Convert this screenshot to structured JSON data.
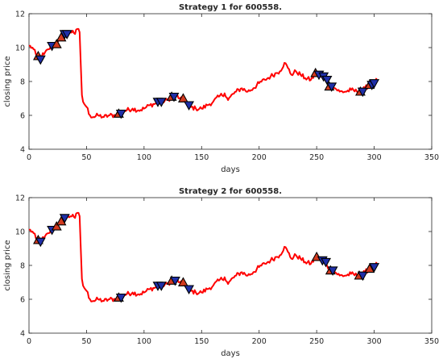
{
  "chart_data": [
    {
      "type": "line",
      "title": "Strategy 1 for 600558.",
      "xlabel": "days",
      "ylabel": "closing price",
      "xlim": [
        0,
        350
      ],
      "ylim": [
        4,
        12
      ],
      "xticks": [
        0,
        50,
        100,
        150,
        200,
        250,
        300,
        350
      ],
      "yticks": [
        4,
        6,
        8,
        10,
        12
      ],
      "grid": false,
      "series_color": "#ff0000",
      "anchors": [
        [
          0,
          10.1
        ],
        [
          3,
          10.0
        ],
        [
          6,
          9.6
        ],
        [
          8,
          9.3
        ],
        [
          10,
          9.5
        ],
        [
          13,
          9.6
        ],
        [
          17,
          9.9
        ],
        [
          20,
          10.1
        ],
        [
          23,
          10.2
        ],
        [
          26,
          10.5
        ],
        [
          29,
          10.7
        ],
        [
          32,
          10.8
        ],
        [
          36,
          10.9
        ],
        [
          38,
          11.0
        ],
        [
          40,
          10.8
        ],
        [
          42,
          11.1
        ],
        [
          44,
          10.9
        ],
        [
          45,
          9.0
        ],
        [
          46,
          7.2
        ],
        [
          47,
          6.8
        ],
        [
          50,
          6.5
        ],
        [
          53,
          6.0
        ],
        [
          56,
          5.9
        ],
        [
          60,
          6.0
        ],
        [
          65,
          5.9
        ],
        [
          70,
          6.0
        ],
        [
          75,
          6.0
        ],
        [
          80,
          6.2
        ],
        [
          85,
          6.3
        ],
        [
          90,
          6.4
        ],
        [
          95,
          6.3
        ],
        [
          100,
          6.4
        ],
        [
          105,
          6.6
        ],
        [
          110,
          6.7
        ],
        [
          115,
          6.8
        ],
        [
          120,
          6.9
        ],
        [
          125,
          7.1
        ],
        [
          128,
          7.2
        ],
        [
          131,
          7.0
        ],
        [
          135,
          6.9
        ],
        [
          140,
          6.5
        ],
        [
          145,
          6.4
        ],
        [
          150,
          6.4
        ],
        [
          155,
          6.6
        ],
        [
          160,
          6.8
        ],
        [
          165,
          7.1
        ],
        [
          170,
          7.3
        ],
        [
          173,
          6.9
        ],
        [
          175,
          7.1
        ],
        [
          180,
          7.4
        ],
        [
          185,
          7.6
        ],
        [
          190,
          7.4
        ],
        [
          195,
          7.6
        ],
        [
          200,
          7.9
        ],
        [
          205,
          8.1
        ],
        [
          210,
          8.3
        ],
        [
          215,
          8.5
        ],
        [
          218,
          8.6
        ],
        [
          222,
          9.1
        ],
        [
          225,
          8.8
        ],
        [
          228,
          8.4
        ],
        [
          232,
          8.6
        ],
        [
          236,
          8.4
        ],
        [
          240,
          8.2
        ],
        [
          245,
          8.1
        ],
        [
          250,
          8.5
        ],
        [
          253,
          8.3
        ],
        [
          256,
          8.2
        ],
        [
          259,
          8.0
        ],
        [
          262,
          7.7
        ],
        [
          266,
          7.6
        ],
        [
          270,
          7.4
        ],
        [
          275,
          7.4
        ],
        [
          280,
          7.5
        ],
        [
          285,
          7.4
        ],
        [
          288,
          7.4
        ],
        [
          292,
          7.6
        ],
        [
          296,
          7.8
        ],
        [
          300,
          7.9
        ],
        [
          302,
          8.2
        ]
      ],
      "markers": [
        {
          "x": 8,
          "y": 9.5,
          "kind": "buy"
        },
        {
          "x": 10,
          "y": 9.3,
          "kind": "sell"
        },
        {
          "x": 20,
          "y": 10.1,
          "kind": "sell"
        },
        {
          "x": 24,
          "y": 10.2,
          "kind": "buy"
        },
        {
          "x": 28,
          "y": 10.6,
          "kind": "buy"
        },
        {
          "x": 31,
          "y": 10.8,
          "kind": "sell"
        },
        {
          "x": 33,
          "y": 10.8,
          "kind": "sell"
        },
        {
          "x": 78,
          "y": 6.1,
          "kind": "buy"
        },
        {
          "x": 80,
          "y": 6.1,
          "kind": "sell"
        },
        {
          "x": 112,
          "y": 6.8,
          "kind": "sell"
        },
        {
          "x": 115,
          "y": 6.8,
          "kind": "sell"
        },
        {
          "x": 124,
          "y": 7.1,
          "kind": "buy"
        },
        {
          "x": 126,
          "y": 7.1,
          "kind": "sell"
        },
        {
          "x": 134,
          "y": 7.0,
          "kind": "buy"
        },
        {
          "x": 139,
          "y": 6.6,
          "kind": "sell"
        },
        {
          "x": 249,
          "y": 8.5,
          "kind": "buy"
        },
        {
          "x": 252,
          "y": 8.4,
          "kind": "sell"
        },
        {
          "x": 256,
          "y": 8.3,
          "kind": "sell"
        },
        {
          "x": 259,
          "y": 8.1,
          "kind": "sell"
        },
        {
          "x": 261,
          "y": 7.7,
          "kind": "buy"
        },
        {
          "x": 263,
          "y": 7.7,
          "kind": "sell"
        },
        {
          "x": 288,
          "y": 7.4,
          "kind": "buy"
        },
        {
          "x": 290,
          "y": 7.4,
          "kind": "sell"
        },
        {
          "x": 296,
          "y": 7.8,
          "kind": "buy"
        },
        {
          "x": 298,
          "y": 7.8,
          "kind": "sell"
        },
        {
          "x": 300,
          "y": 7.9,
          "kind": "sell"
        }
      ]
    },
    {
      "type": "line",
      "title": "Strategy 2 for 600558.",
      "xlabel": "days",
      "ylabel": "closing price",
      "xlim": [
        0,
        350
      ],
      "ylim": [
        4,
        12
      ],
      "xticks": [
        0,
        50,
        100,
        150,
        200,
        250,
        300,
        350
      ],
      "yticks": [
        4,
        6,
        8,
        10,
        12
      ],
      "grid": false,
      "series_color": "#ff0000",
      "anchors": [
        [
          0,
          10.1
        ],
        [
          3,
          10.0
        ],
        [
          6,
          9.6
        ],
        [
          8,
          9.3
        ],
        [
          10,
          9.5
        ],
        [
          13,
          9.6
        ],
        [
          17,
          9.9
        ],
        [
          20,
          10.1
        ],
        [
          23,
          10.2
        ],
        [
          26,
          10.5
        ],
        [
          29,
          10.7
        ],
        [
          32,
          10.8
        ],
        [
          36,
          10.9
        ],
        [
          38,
          11.0
        ],
        [
          40,
          10.8
        ],
        [
          42,
          11.1
        ],
        [
          44,
          10.9
        ],
        [
          45,
          9.0
        ],
        [
          46,
          7.2
        ],
        [
          47,
          6.8
        ],
        [
          50,
          6.5
        ],
        [
          53,
          6.0
        ],
        [
          56,
          5.9
        ],
        [
          60,
          6.0
        ],
        [
          65,
          5.9
        ],
        [
          70,
          6.0
        ],
        [
          75,
          6.0
        ],
        [
          80,
          6.2
        ],
        [
          85,
          6.3
        ],
        [
          90,
          6.4
        ],
        [
          95,
          6.3
        ],
        [
          100,
          6.4
        ],
        [
          105,
          6.6
        ],
        [
          110,
          6.7
        ],
        [
          115,
          6.8
        ],
        [
          120,
          6.9
        ],
        [
          125,
          7.1
        ],
        [
          128,
          7.2
        ],
        [
          131,
          7.0
        ],
        [
          135,
          6.9
        ],
        [
          140,
          6.5
        ],
        [
          145,
          6.4
        ],
        [
          150,
          6.4
        ],
        [
          155,
          6.6
        ],
        [
          160,
          6.8
        ],
        [
          165,
          7.1
        ],
        [
          170,
          7.3
        ],
        [
          173,
          6.9
        ],
        [
          175,
          7.1
        ],
        [
          180,
          7.4
        ],
        [
          185,
          7.6
        ],
        [
          190,
          7.4
        ],
        [
          195,
          7.6
        ],
        [
          200,
          7.9
        ],
        [
          205,
          8.1
        ],
        [
          210,
          8.3
        ],
        [
          215,
          8.5
        ],
        [
          218,
          8.6
        ],
        [
          222,
          9.1
        ],
        [
          225,
          8.8
        ],
        [
          228,
          8.4
        ],
        [
          232,
          8.6
        ],
        [
          236,
          8.4
        ],
        [
          240,
          8.2
        ],
        [
          245,
          8.1
        ],
        [
          250,
          8.5
        ],
        [
          253,
          8.3
        ],
        [
          256,
          8.2
        ],
        [
          259,
          8.0
        ],
        [
          262,
          7.7
        ],
        [
          266,
          7.6
        ],
        [
          270,
          7.4
        ],
        [
          275,
          7.4
        ],
        [
          280,
          7.5
        ],
        [
          285,
          7.4
        ],
        [
          288,
          7.4
        ],
        [
          292,
          7.6
        ],
        [
          296,
          7.8
        ],
        [
          300,
          7.9
        ],
        [
          302,
          8.2
        ]
      ],
      "markers": [
        {
          "x": 8,
          "y": 9.5,
          "kind": "buy"
        },
        {
          "x": 10,
          "y": 9.4,
          "kind": "sell"
        },
        {
          "x": 20,
          "y": 10.1,
          "kind": "sell"
        },
        {
          "x": 24,
          "y": 10.3,
          "kind": "buy"
        },
        {
          "x": 28,
          "y": 10.6,
          "kind": "buy"
        },
        {
          "x": 31,
          "y": 10.8,
          "kind": "sell"
        },
        {
          "x": 78,
          "y": 6.1,
          "kind": "buy"
        },
        {
          "x": 80,
          "y": 6.1,
          "kind": "sell"
        },
        {
          "x": 112,
          "y": 6.8,
          "kind": "sell"
        },
        {
          "x": 115,
          "y": 6.8,
          "kind": "sell"
        },
        {
          "x": 124,
          "y": 7.1,
          "kind": "buy"
        },
        {
          "x": 127,
          "y": 7.1,
          "kind": "sell"
        },
        {
          "x": 134,
          "y": 7.0,
          "kind": "buy"
        },
        {
          "x": 139,
          "y": 6.6,
          "kind": "sell"
        },
        {
          "x": 250,
          "y": 8.5,
          "kind": "buy"
        },
        {
          "x": 255,
          "y": 8.3,
          "kind": "sell"
        },
        {
          "x": 258,
          "y": 8.2,
          "kind": "sell"
        },
        {
          "x": 262,
          "y": 7.7,
          "kind": "buy"
        },
        {
          "x": 264,
          "y": 7.7,
          "kind": "sell"
        },
        {
          "x": 287,
          "y": 7.4,
          "kind": "buy"
        },
        {
          "x": 290,
          "y": 7.4,
          "kind": "sell"
        },
        {
          "x": 296,
          "y": 7.8,
          "kind": "buy"
        },
        {
          "x": 300,
          "y": 7.9,
          "kind": "sell"
        }
      ]
    }
  ],
  "marker_style": {
    "buy": {
      "fill": "#d33a1f",
      "stroke": "#000000"
    },
    "sell": {
      "fill": "#1f2fa8",
      "stroke": "#000000"
    }
  }
}
